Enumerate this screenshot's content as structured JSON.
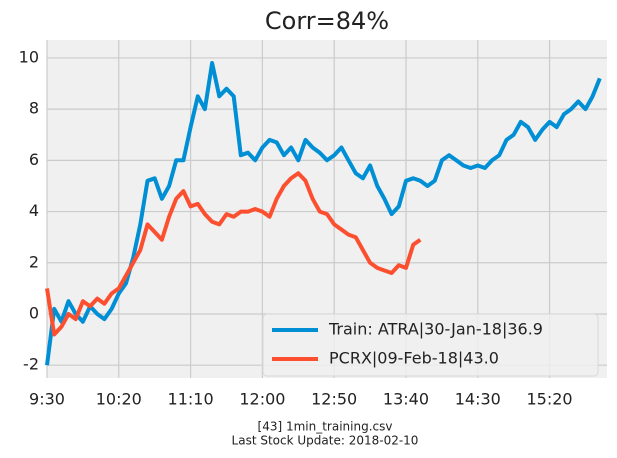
{
  "chart_data": {
    "type": "line",
    "title": "Corr=84%",
    "footnote": [
      "[43] 1min_training.csv",
      "Last Stock Update: 2018-02-10"
    ],
    "x": [
      570,
      575,
      580,
      585,
      590,
      595,
      600,
      605,
      610,
      615,
      620,
      625,
      630,
      635,
      640,
      645,
      650,
      655,
      660,
      665,
      670,
      675,
      680,
      685,
      690,
      695,
      700,
      705,
      710,
      715,
      720,
      725,
      730,
      735,
      740,
      745,
      750,
      755,
      760,
      765,
      770,
      775,
      780,
      785,
      790,
      795,
      800,
      805,
      810,
      815,
      820,
      825,
      830,
      835,
      840,
      845,
      850,
      855,
      860,
      865,
      870,
      875,
      880,
      885,
      890,
      895,
      900,
      905,
      910,
      915,
      920,
      925,
      930,
      935,
      940,
      945,
      950,
      955
    ],
    "series": [
      {
        "name": "Train: ATRA|30-Jan-18|36.9",
        "color": "#008fd5",
        "values": [
          -2.0,
          0.2,
          -0.3,
          0.5,
          0,
          -0.3,
          0.3,
          0,
          -0.2,
          0.2,
          0.8,
          1.2,
          2.2,
          3.5,
          5.2,
          5.3,
          4.5,
          5.0,
          6.0,
          6.0,
          7.3,
          8.5,
          8.0,
          9.8,
          8.5,
          8.8,
          8.5,
          6.2,
          6.3,
          6.0,
          6.5,
          6.8,
          6.7,
          6.2,
          6.5,
          6.0,
          6.8,
          6.5,
          6.3,
          6.0,
          6.2,
          6.5,
          6.0,
          5.5,
          5.3,
          5.8,
          5.0,
          4.5,
          3.9,
          4.2,
          5.2,
          5.3,
          5.2,
          5.0,
          5.2,
          6.0,
          6.2,
          6.0,
          5.8,
          5.7,
          5.8,
          5.7,
          6.0,
          6.2,
          6.8,
          7.0,
          7.5,
          7.3,
          6.8,
          7.2,
          7.5,
          7.3,
          7.8,
          8.0,
          8.3,
          8.0,
          8.5,
          9.2
        ]
      },
      {
        "name": "PCRX|09-Feb-18|43.0",
        "color": "#fc4f30",
        "values": [
          1.0,
          -0.8,
          -0.5,
          0.0,
          -0.2,
          0.5,
          0.3,
          0.6,
          0.4,
          0.8,
          1.0,
          1.5,
          2.0,
          2.5,
          3.5,
          3.2,
          2.9,
          3.8,
          4.5,
          4.8,
          4.2,
          4.3,
          3.9,
          3.6,
          3.5,
          3.9,
          3.8,
          4.0,
          4.0,
          4.1,
          4.0,
          3.8,
          4.5,
          5.0,
          5.3,
          5.5,
          5.2,
          4.5,
          4.0,
          3.9,
          3.5,
          3.3,
          3.1,
          3.0,
          2.5,
          2.0,
          1.8,
          1.7,
          1.6,
          1.9,
          1.8,
          2.7,
          2.9,
          null,
          null,
          null,
          null,
          null,
          null,
          null,
          null,
          null,
          null,
          null,
          null,
          null,
          null,
          null,
          null,
          null,
          null,
          null,
          null,
          null,
          null,
          null,
          null,
          null
        ]
      }
    ],
    "xlim": [
      570,
      960
    ],
    "xticks": [
      {
        "value": 570,
        "label": "9:30"
      },
      {
        "value": 620,
        "label": "10:20"
      },
      {
        "value": 670,
        "label": "11:10"
      },
      {
        "value": 720,
        "label": "12:00"
      },
      {
        "value": 770,
        "label": "12:50"
      },
      {
        "value": 820,
        "label": "13:40"
      },
      {
        "value": 870,
        "label": "14:30"
      },
      {
        "value": 920,
        "label": "15:20"
      }
    ],
    "ylim": [
      -2.5,
      10.7
    ],
    "yticks": [
      -2,
      0,
      2,
      4,
      6,
      8,
      10
    ],
    "grid": true,
    "legend": "lower right"
  }
}
